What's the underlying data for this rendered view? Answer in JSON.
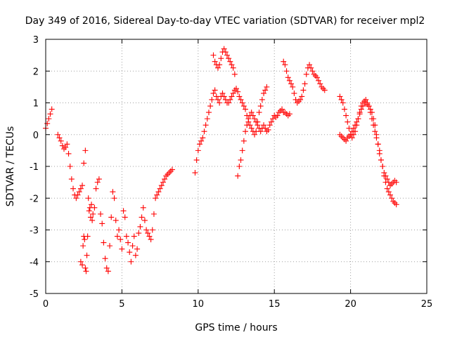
{
  "chart_data": {
    "type": "scatter",
    "title": "Day 349 of 2016, Sidereal Day-to-day VTEC variation (SDTVAR) for receiver mpl2",
    "xlabel": "GPS time / hours",
    "ylabel": "SDTVAR / TECUs",
    "xlim": [
      0,
      25
    ],
    "ylim": [
      -5,
      3
    ],
    "xticks": [
      "0",
      "5",
      "10",
      "15",
      "20",
      "25"
    ],
    "yticks": [
      "-5",
      "-4",
      "-3",
      "-2",
      "-1",
      "0",
      "1",
      "2",
      "3"
    ],
    "grid": true,
    "marker": "+",
    "color": "#ff0000",
    "series": [
      {
        "x": [
          0.0,
          0.1,
          0.2,
          0.3,
          0.4,
          0.8,
          0.9,
          1.0,
          1.1,
          1.2,
          1.3,
          1.4,
          1.5,
          1.6,
          1.7,
          1.8,
          1.9,
          2.0,
          2.1,
          2.2,
          2.3,
          2.4,
          2.5,
          2.6,
          2.3,
          2.4,
          2.45,
          2.5,
          2.55,
          2.6,
          2.65,
          2.7,
          2.75,
          2.8,
          2.85,
          2.9,
          2.95,
          3.0,
          3.05,
          3.1,
          3.2,
          3.3,
          3.4,
          3.5,
          3.6,
          3.7,
          3.8,
          3.9,
          4.0,
          4.1,
          4.2,
          4.3,
          4.4,
          4.5,
          4.6,
          4.7,
          4.8,
          4.9,
          5.0,
          5.1,
          5.2,
          5.3,
          5.4,
          5.5,
          5.6,
          5.7,
          5.8,
          5.9,
          6.0,
          6.1,
          6.2,
          6.3,
          6.4,
          6.5,
          6.6,
          6.7,
          6.8,
          6.9,
          7.0,
          7.1,
          7.2,
          7.3,
          7.4,
          7.5,
          7.6,
          7.7,
          7.8,
          7.9,
          8.0,
          8.1,
          8.2,
          8.3
        ],
        "y": [
          0.2,
          0.35,
          0.5,
          0.65,
          0.8,
          0.0,
          -0.1,
          -0.2,
          -0.35,
          -0.45,
          -0.4,
          -0.3,
          -0.6,
          -1.0,
          -1.4,
          -1.7,
          -1.9,
          -2.0,
          -1.9,
          -1.8,
          -1.7,
          -1.6,
          -0.9,
          -0.5,
          -4.0,
          -4.1,
          -3.5,
          -3.2,
          -3.3,
          -4.2,
          -4.3,
          -3.8,
          -3.2,
          -2.0,
          -2.4,
          -2.3,
          -2.6,
          -2.2,
          -2.7,
          -2.5,
          -2.3,
          -1.7,
          -1.5,
          -1.4,
          -2.5,
          -2.8,
          -3.4,
          -3.9,
          -4.2,
          -4.3,
          -3.5,
          -2.6,
          -1.8,
          -2.0,
          -2.7,
          -3.2,
          -3.0,
          -3.3,
          -3.6,
          -2.4,
          -2.6,
          -3.2,
          -3.4,
          -3.7,
          -4.0,
          -3.5,
          -3.2,
          -3.8,
          -3.6,
          -3.1,
          -2.9,
          -2.6,
          -2.3,
          -2.7,
          -3.0,
          -3.1,
          -3.2,
          -3.3,
          -3.0,
          -2.5,
          -2.0,
          -1.9,
          -1.8,
          -1.7,
          -1.6,
          -1.5,
          -1.4,
          -1.3,
          -1.25,
          -1.2,
          -1.15,
          -1.1
        ]
      },
      {
        "x": [
          9.8,
          9.9,
          10.0,
          10.1,
          10.2,
          10.3,
          10.4,
          10.5,
          10.6,
          10.7,
          10.8,
          10.9,
          11.0,
          11.1,
          11.2,
          11.3,
          11.4,
          11.5,
          11.6,
          11.7,
          11.8,
          11.9,
          12.0,
          12.1,
          12.2,
          12.3,
          12.4,
          12.5,
          12.6,
          12.7,
          12.8,
          12.9,
          13.0,
          13.1,
          13.2,
          13.3,
          13.4,
          13.5,
          13.6,
          13.7,
          13.8,
          13.9,
          14.0,
          14.1,
          14.2,
          14.3,
          14.4,
          14.5,
          11.0,
          11.1,
          11.2,
          11.3,
          11.4,
          11.5,
          11.6,
          11.7,
          11.8,
          11.9,
          12.0,
          12.1,
          12.2,
          12.3,
          12.4,
          12.6,
          12.7,
          12.8,
          12.9,
          13.0,
          13.1,
          13.2,
          13.3,
          13.4,
          13.5,
          13.6,
          13.7,
          13.8,
          13.9,
          14.0,
          14.1,
          14.2,
          14.3,
          14.4,
          14.5,
          14.6,
          14.7,
          14.8,
          14.9,
          15.0,
          15.1,
          15.2,
          15.3,
          15.4,
          15.5,
          15.6,
          15.7,
          15.8,
          15.9,
          16.0,
          15.6,
          15.7,
          15.8,
          15.9,
          16.0,
          16.1,
          16.2,
          16.3,
          16.4,
          16.5,
          16.6,
          16.7,
          16.8,
          16.9,
          17.0,
          17.1,
          17.2,
          17.3,
          17.4,
          17.5,
          17.6,
          17.7,
          17.8,
          17.9,
          18.0,
          18.1,
          18.2,
          18.3
        ],
        "y": [
          -1.2,
          -0.8,
          -0.5,
          -0.3,
          -0.2,
          -0.1,
          0.1,
          0.3,
          0.5,
          0.7,
          0.9,
          1.1,
          1.3,
          1.4,
          1.2,
          1.1,
          1.0,
          1.2,
          1.3,
          1.2,
          1.1,
          1.0,
          1.0,
          1.1,
          1.2,
          1.3,
          1.4,
          1.45,
          1.35,
          1.2,
          1.1,
          1.0,
          0.9,
          0.8,
          0.6,
          0.4,
          0.3,
          0.2,
          0.1,
          0.0,
          0.1,
          0.4,
          0.7,
          0.9,
          1.1,
          1.3,
          1.4,
          1.5,
          2.5,
          2.3,
          2.2,
          2.1,
          2.2,
          2.4,
          2.6,
          2.7,
          2.6,
          2.5,
          2.4,
          2.3,
          2.2,
          2.1,
          1.9,
          -1.3,
          -1.0,
          -0.8,
          -0.5,
          -0.2,
          0.1,
          0.3,
          0.5,
          0.6,
          0.7,
          0.6,
          0.5,
          0.4,
          0.3,
          0.2,
          0.1,
          0.2,
          0.3,
          0.2,
          0.1,
          0.15,
          0.3,
          0.4,
          0.5,
          0.6,
          0.55,
          0.6,
          0.7,
          0.75,
          0.8,
          0.7,
          0.7,
          0.65,
          0.6,
          0.65,
          2.3,
          2.2,
          2.0,
          1.8,
          1.7,
          1.6,
          1.5,
          1.3,
          1.1,
          1.0,
          1.05,
          1.1,
          1.2,
          1.4,
          1.6,
          1.9,
          2.1,
          2.2,
          2.1,
          2.0,
          1.9,
          1.85,
          1.8,
          1.7,
          1.6,
          1.5,
          1.45,
          1.4
        ]
      },
      {
        "x": [
          19.3,
          19.4,
          19.5,
          19.6,
          19.7,
          19.8,
          19.9,
          20.0,
          20.1,
          20.2,
          20.3,
          20.4,
          20.5,
          20.6,
          20.7,
          20.8,
          20.9,
          21.0,
          21.1,
          21.2,
          21.3,
          21.4,
          21.5,
          21.6,
          21.7,
          21.8,
          21.9,
          22.0,
          22.1,
          22.2,
          22.3,
          22.4,
          22.5,
          22.6,
          22.7,
          22.8,
          22.9,
          23.0,
          19.3,
          19.4,
          19.5,
          19.6,
          19.7,
          19.8,
          19.9,
          20.0,
          20.1,
          20.2,
          20.3,
          20.4,
          20.5,
          20.6,
          20.7,
          20.8,
          20.9,
          21.0,
          21.1,
          21.2,
          21.3,
          21.4,
          21.5,
          21.6,
          21.7,
          21.8,
          21.9,
          22.0,
          22.1,
          22.2,
          22.3,
          22.4,
          22.5,
          22.6,
          22.7,
          22.8,
          22.9,
          23.0
        ],
        "y": [
          1.2,
          1.1,
          1.0,
          0.8,
          0.6,
          0.4,
          0.2,
          0.0,
          -0.1,
          0.0,
          0.1,
          0.3,
          0.5,
          0.7,
          0.9,
          1.0,
          1.05,
          1.1,
          1.0,
          0.9,
          0.7,
          0.5,
          0.3,
          0.1,
          -0.1,
          -0.3,
          -0.5,
          -0.8,
          -1.0,
          -1.3,
          -1.5,
          -1.7,
          -1.8,
          -1.9,
          -2.0,
          -2.1,
          -2.15,
          -2.2,
          0.0,
          -0.05,
          -0.1,
          -0.15,
          -0.2,
          -0.1,
          -0.05,
          0.0,
          0.1,
          0.2,
          0.3,
          0.4,
          0.5,
          0.65,
          0.8,
          0.9,
          1.0,
          1.0,
          0.95,
          0.9,
          0.8,
          0.7,
          0.5,
          0.3,
          0.0,
          -0.3,
          -0.6,
          -0.8,
          -1.0,
          -1.2,
          -1.3,
          -1.4,
          -1.5,
          -1.6,
          -1.55,
          -1.5,
          -1.45,
          -1.5
        ]
      }
    ]
  }
}
